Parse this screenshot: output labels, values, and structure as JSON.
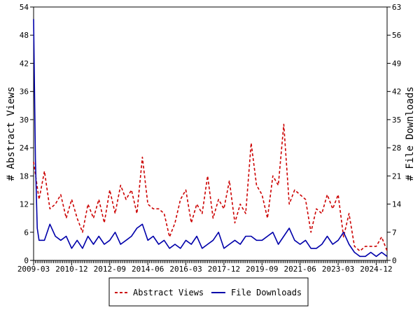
{
  "chart_data": {
    "type": "line",
    "title": "",
    "xlabel": "",
    "ylabel_left": "# Abstract Views",
    "ylabel_right": "# File Downloads",
    "ylim_left": [
      0,
      54
    ],
    "ylim_right": [
      0,
      63
    ],
    "yticks_left": [
      "0",
      "6",
      "12",
      "18",
      "24",
      "30",
      "36",
      "42",
      "48",
      "54"
    ],
    "yticks_right": [
      "0",
      "7",
      "14",
      "21",
      "28",
      "35",
      "42",
      "49",
      "56",
      "63"
    ],
    "x_start": "2009-03",
    "x_end": "2025-06",
    "xticks": [
      "2009-03",
      "2010-12",
      "2012-09",
      "2014-06",
      "2016-03",
      "2017-12",
      "2019-09",
      "2021-06",
      "2023-03",
      "2024-12"
    ],
    "grid": false,
    "legend_position": "bottom",
    "colors": {
      "abstract_views": "#cc0000",
      "file_downloads": "#0000aa"
    },
    "series": [
      {
        "name": "Abstract Views",
        "axis": "left",
        "style": "dashed",
        "x": [
          "2009-03",
          "2009-06",
          "2009-09",
          "2009-12",
          "2010-03",
          "2010-06",
          "2010-09",
          "2010-12",
          "2011-03",
          "2011-06",
          "2011-09",
          "2011-12",
          "2012-03",
          "2012-06",
          "2012-09",
          "2012-12",
          "2013-03",
          "2013-06",
          "2013-09",
          "2013-12",
          "2014-03",
          "2014-06",
          "2014-09",
          "2014-12",
          "2015-03",
          "2015-06",
          "2015-09",
          "2015-12",
          "2016-03",
          "2016-06",
          "2016-09",
          "2016-12",
          "2017-03",
          "2017-06",
          "2017-09",
          "2017-12",
          "2018-03",
          "2018-06",
          "2018-09",
          "2018-12",
          "2019-03",
          "2019-06",
          "2019-09",
          "2019-12",
          "2020-03",
          "2020-06",
          "2020-09",
          "2020-12",
          "2021-03",
          "2021-06",
          "2021-09",
          "2021-12",
          "2022-03",
          "2022-06",
          "2022-09",
          "2022-12",
          "2023-03",
          "2023-06",
          "2023-09",
          "2023-12",
          "2024-03",
          "2024-06",
          "2024-09",
          "2024-12",
          "2025-03",
          "2025-06"
        ],
        "values": [
          21,
          13,
          19,
          11,
          12,
          14,
          9,
          13,
          9,
          6,
          12,
          9,
          13,
          8,
          15,
          10,
          16,
          13,
          15,
          10,
          22,
          12,
          11,
          11,
          10,
          5,
          8,
          13,
          15,
          8,
          12,
          10,
          18,
          9,
          13,
          11,
          17,
          8,
          12,
          10,
          25,
          16,
          14,
          9,
          18,
          16,
          29,
          12,
          15,
          14,
          13,
          6,
          11,
          10,
          14,
          11,
          14,
          5,
          10,
          3,
          2,
          3,
          3,
          3,
          5,
          2
        ]
      },
      {
        "name": "File Downloads",
        "axis": "right",
        "style": "solid",
        "x": [
          "2009-03",
          "2009-04",
          "2009-05",
          "2009-06",
          "2009-09",
          "2009-12",
          "2010-03",
          "2010-06",
          "2010-09",
          "2010-12",
          "2011-03",
          "2011-06",
          "2011-09",
          "2011-12",
          "2012-03",
          "2012-06",
          "2012-09",
          "2012-12",
          "2013-03",
          "2013-06",
          "2013-09",
          "2013-12",
          "2014-03",
          "2014-06",
          "2014-09",
          "2014-12",
          "2015-03",
          "2015-06",
          "2015-09",
          "2015-12",
          "2016-03",
          "2016-06",
          "2016-09",
          "2016-12",
          "2017-03",
          "2017-06",
          "2017-09",
          "2017-12",
          "2018-03",
          "2018-06",
          "2018-09",
          "2018-12",
          "2019-03",
          "2019-06",
          "2019-09",
          "2019-12",
          "2020-03",
          "2020-06",
          "2020-09",
          "2020-12",
          "2021-03",
          "2021-06",
          "2021-09",
          "2021-12",
          "2022-03",
          "2022-06",
          "2022-09",
          "2022-12",
          "2023-03",
          "2023-06",
          "2023-09",
          "2023-12",
          "2024-03",
          "2024-06",
          "2024-09",
          "2024-12",
          "2025-03",
          "2025-06"
        ],
        "values": [
          60,
          25,
          8,
          5,
          5,
          9,
          6,
          5,
          6,
          3,
          5,
          3,
          6,
          4,
          6,
          4,
          5,
          7,
          4,
          5,
          6,
          8,
          9,
          5,
          6,
          4,
          5,
          3,
          4,
          3,
          5,
          4,
          6,
          3,
          4,
          5,
          7,
          3,
          4,
          5,
          4,
          6,
          6,
          5,
          5,
          6,
          7,
          4,
          6,
          8,
          5,
          4,
          5,
          3,
          3,
          4,
          6,
          4,
          5,
          7,
          4,
          2,
          1,
          1,
          2,
          1,
          2,
          1
        ]
      }
    ]
  }
}
